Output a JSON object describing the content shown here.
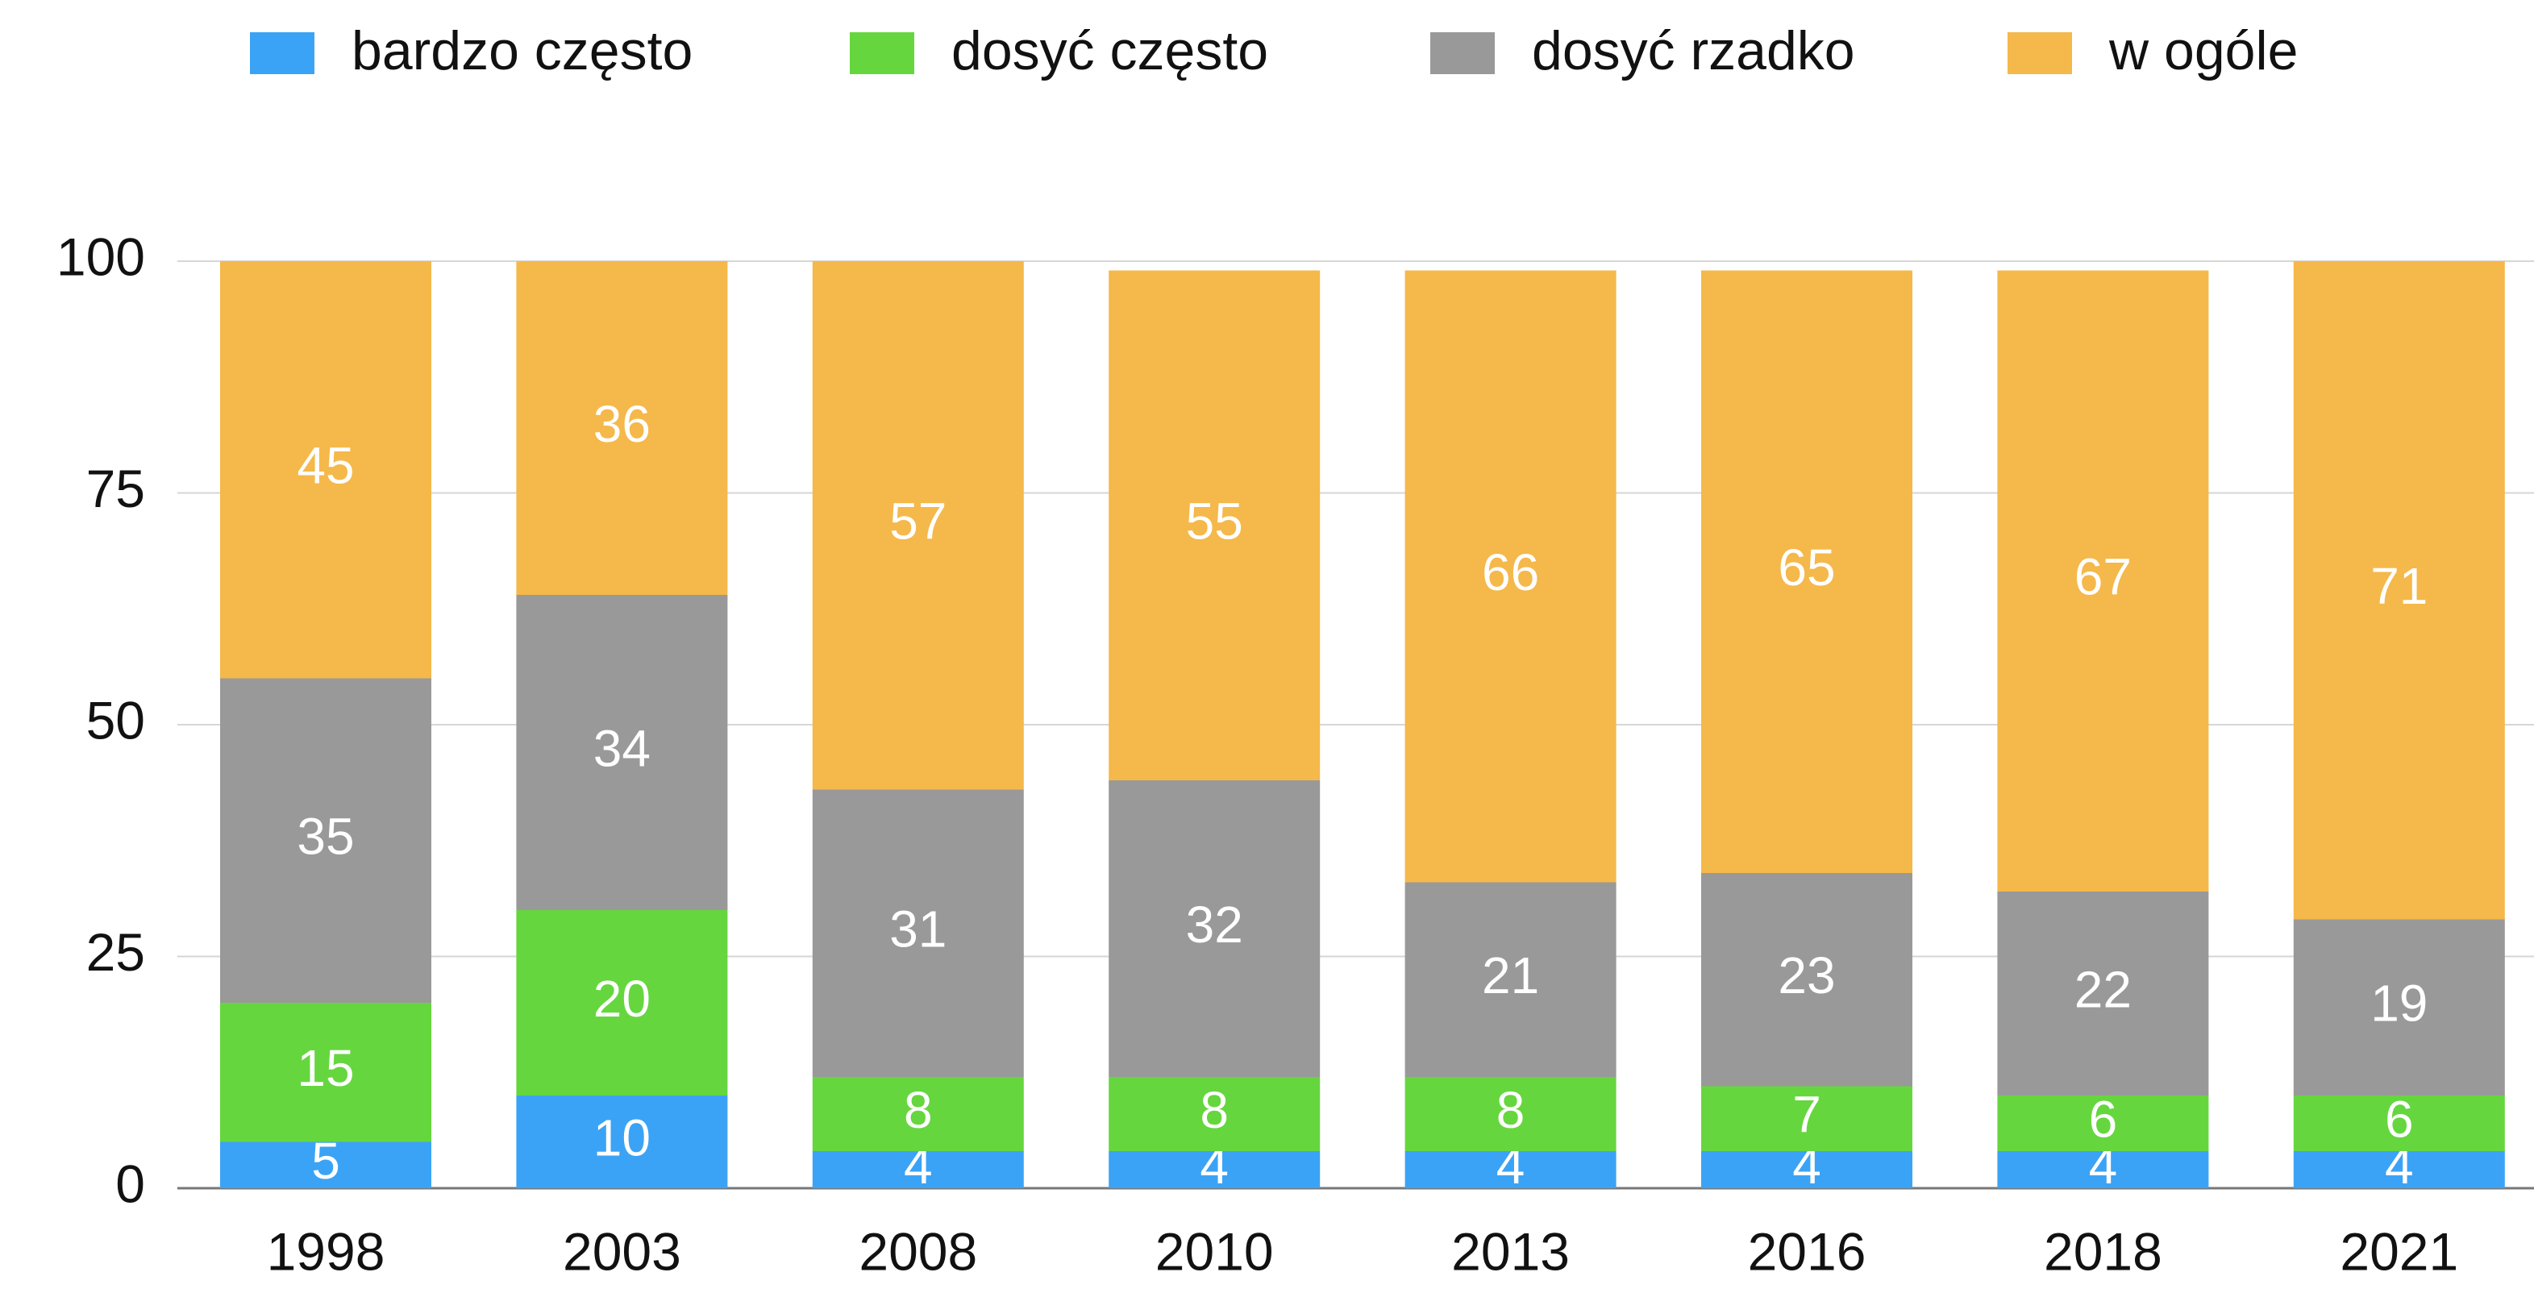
{
  "chart_data": {
    "type": "stacked_bar",
    "categories": [
      "1998",
      "2003",
      "2008",
      "2010",
      "2013",
      "2016",
      "2018",
      "2021"
    ],
    "series": [
      {
        "name": "bardzo często",
        "color": "#3ba3f5",
        "values": [
          5,
          10,
          4,
          4,
          4,
          4,
          4,
          4
        ]
      },
      {
        "name": "dosyć często",
        "color": "#66d63f",
        "values": [
          15,
          20,
          8,
          8,
          8,
          7,
          6,
          6
        ]
      },
      {
        "name": "dosyć rzadko",
        "color": "#999999",
        "values": [
          35,
          34,
          31,
          32,
          21,
          23,
          22,
          19
        ]
      },
      {
        "name": "w ogóle",
        "color": "#f5b84a",
        "values": [
          45,
          36,
          57,
          55,
          66,
          65,
          67,
          71
        ]
      }
    ],
    "ylim": [
      0,
      100
    ],
    "yticks": [
      0,
      25,
      50,
      75,
      100
    ],
    "grid": true,
    "legend": "top"
  }
}
